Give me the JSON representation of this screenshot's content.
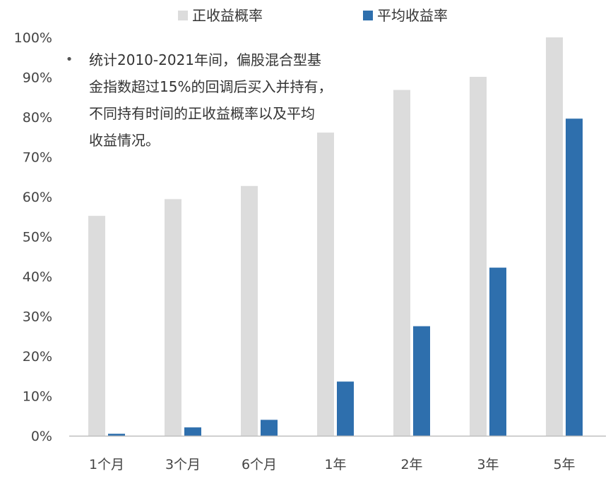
{
  "chart_data": {
    "type": "bar",
    "categories": [
      "1个月",
      "3个月",
      "6个月",
      "1年",
      "2年",
      "3年",
      "5年"
    ],
    "series": [
      {
        "name": "正收益概率",
        "color": "#dcdcdc",
        "values": [
          55.2,
          59.4,
          62.7,
          76.1,
          86.8,
          90.1,
          100.0
        ]
      },
      {
        "name": "平均收益率",
        "color": "#2e6fad",
        "values": [
          0.5,
          2.1,
          4.0,
          13.6,
          27.5,
          42.2,
          79.6
        ]
      }
    ],
    "y_ticks": [
      "0%",
      "10%",
      "20%",
      "30%",
      "40%",
      "50%",
      "60%",
      "70%",
      "80%",
      "90%",
      "100%"
    ],
    "ylim": [
      0,
      100
    ],
    "legend_position": "top-center",
    "grid": false,
    "annotation": {
      "bullet": "•",
      "lines": [
        "统计2010-2021年间，偏股混合型基",
        "金指数超过15%的回调后买入并持有，",
        "不同持有时间的正收益概率以及平均",
        "收益情况。"
      ]
    }
  }
}
